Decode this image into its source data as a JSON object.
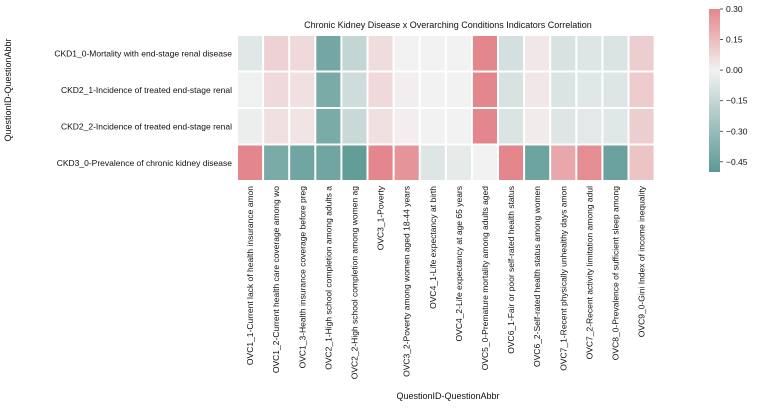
{
  "chart_data": {
    "type": "heatmap",
    "title": "Chronic Kidney Disease x Overarching Conditions Indicators Correlation",
    "xlabel": "QuestionID-QuestionAbbr",
    "ylabel": "QuestionID-QuestionAbbr",
    "rows": [
      "CKD1_0-Mortality with end-stage renal disease",
      "CKD2_1-Incidence of treated end-stage renal",
      "CKD2_2-Incidence of treated end-stage renal",
      "CKD3_0-Prevalence of chronic kidney disease"
    ],
    "columns": [
      "OVC1_1-Current lack of health insurance amon",
      "OVC1_2-Current health care coverage among wo",
      "OVC1_3-Health insurance coverage before preg",
      "OVC2_1-High school completion among adults a",
      "OVC2_2-High school completion among women ag",
      "OVC3_1-Poverty",
      "OVC3_2-Poverty among women aged 18-44 years",
      "OVC4_1-Life expectancy at birth",
      "OVC4_2-Life expectancy at age 65 years",
      "OVC5_0-Premature mortality among adults aged",
      "OVC6_1-Fair or poor self-rated health status",
      "OVC6_2-Self-rated health status among women",
      "OVC7_1-Recent physically unhealthy days amon",
      "OVC7_2-Recent activity limitation among adul",
      "OVC8_0-Prevalence of sufficient sleep among",
      "OVC9_0-Gini Index of income inequality"
    ],
    "values": [
      [
        -0.06,
        0.09,
        0.07,
        -0.42,
        -0.16,
        0.06,
        0.0,
        0.0,
        0.0,
        0.3,
        -0.1,
        0.03,
        -0.09,
        -0.07,
        -0.08,
        0.1
      ],
      [
        -0.01,
        0.07,
        0.05,
        -0.4,
        -0.12,
        0.07,
        0.01,
        0.0,
        0.0,
        0.3,
        -0.09,
        0.03,
        -0.08,
        -0.06,
        -0.07,
        0.11
      ],
      [
        -0.02,
        0.05,
        0.04,
        -0.4,
        -0.14,
        0.05,
        0.01,
        0.0,
        0.0,
        0.3,
        -0.08,
        0.02,
        -0.07,
        -0.05,
        -0.06,
        0.1
      ],
      [
        0.3,
        -0.4,
        -0.43,
        -0.43,
        -0.48,
        0.3,
        0.26,
        -0.07,
        -0.04,
        0.0,
        0.3,
        -0.44,
        0.21,
        0.28,
        -0.45,
        0.13
      ]
    ],
    "colorbar": {
      "vmin": -0.5,
      "vmax": 0.3,
      "ticks": [
        0.3,
        0.15,
        0.0,
        -0.15,
        -0.3,
        -0.45
      ],
      "tick_labels": [
        "0.30",
        "0.15",
        "0.00",
        "−0.15",
        "−0.30",
        "−0.45"
      ],
      "color_low": "#5c9994",
      "color_mid": "#f2f2f2",
      "color_high": "#e3878c"
    },
    "grid": false,
    "legend": "right"
  }
}
